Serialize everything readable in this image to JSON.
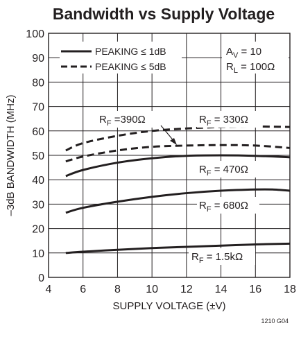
{
  "chart_data": {
    "type": "line",
    "title": "Bandwidth vs Supply Voltage",
    "xlabel": "SUPPLY VOLTAGE (±V)",
    "ylabel": "–3dB BANDWIDTH (MHz)",
    "xlim": [
      4,
      18
    ],
    "ylim": [
      0,
      100
    ],
    "x_ticks": [
      4,
      6,
      8,
      10,
      12,
      14,
      16,
      18
    ],
    "y_ticks": [
      0,
      10,
      20,
      30,
      40,
      50,
      60,
      70,
      80,
      90,
      100
    ],
    "grid": true,
    "legend_position": "top-left",
    "legend": [
      {
        "label": "PEAKING ≤ 1dB",
        "style": "solid"
      },
      {
        "label": "PEAKING ≤ 5dB",
        "style": "dashed"
      }
    ],
    "conditions": {
      "av": {
        "main": "A",
        "sub": "V",
        "rest": " = 10"
      },
      "rl": {
        "main": "R",
        "sub": "L",
        "rest": " = 100Ω"
      }
    },
    "figure_id": "1210 G04",
    "series": [
      {
        "style": "dashed",
        "label": {
          "main": "R",
          "sub": "F",
          "rest": " = 330Ω"
        },
        "x": [
          5,
          6,
          8,
          10,
          12,
          14,
          16,
          18
        ],
        "y": [
          52,
          55,
          58,
          60,
          61,
          61.6,
          61.8,
          61.6
        ]
      },
      {
        "style": "dashed",
        "label": {
          "main": "R",
          "sub": "F",
          "rest": " =390Ω"
        },
        "x": [
          5,
          6,
          8,
          10,
          12,
          14,
          16,
          18
        ],
        "y": [
          47.5,
          49.5,
          52,
          53.5,
          54,
          54.2,
          54,
          53
        ]
      },
      {
        "style": "solid",
        "label": {
          "main": "R",
          "sub": "F",
          "rest": " = 470Ω"
        },
        "x": [
          5,
          6,
          8,
          10,
          12,
          14,
          16,
          18
        ],
        "y": [
          41.5,
          44,
          47,
          48.8,
          49.8,
          50,
          49.8,
          49.2
        ]
      },
      {
        "style": "solid",
        "label": {
          "main": "R",
          "sub": "F",
          "rest": " = 680Ω"
        },
        "x": [
          5,
          6,
          8,
          10,
          12,
          14,
          16,
          17,
          18
        ],
        "y": [
          26.5,
          28.5,
          31,
          33,
          34.5,
          35.5,
          36,
          36,
          35.5
        ]
      },
      {
        "style": "solid",
        "label": {
          "main": "R",
          "sub": "F",
          "rest": " = 1.5kΩ"
        },
        "x": [
          5,
          6,
          8,
          10,
          12,
          14,
          16,
          18
        ],
        "y": [
          10,
          10.5,
          11.3,
          12,
          12.5,
          13,
          13.5,
          13.8
        ]
      }
    ]
  }
}
